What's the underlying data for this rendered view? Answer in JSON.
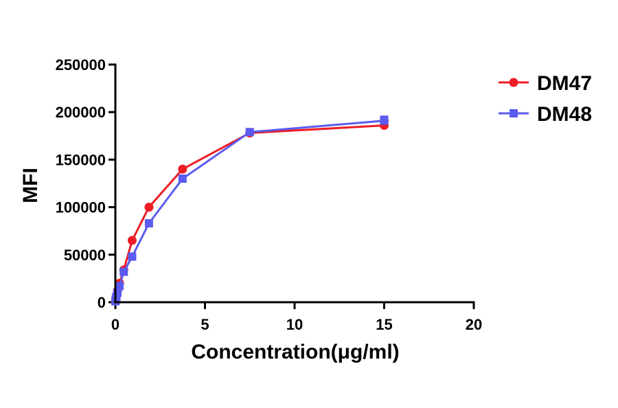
{
  "chart_data": {
    "type": "line",
    "xlabel": "Concentration(μg/ml)",
    "ylabel": "MFI",
    "xlim": [
      0,
      20
    ],
    "ylim": [
      0,
      250000
    ],
    "x_ticks": [
      0,
      5,
      10,
      15,
      20
    ],
    "x_tick_labels": [
      "0",
      "5",
      "10",
      "15",
      "20"
    ],
    "y_ticks": [
      0,
      50000,
      100000,
      150000,
      200000,
      250000
    ],
    "y_tick_labels": [
      "0",
      "50000",
      "100000",
      "150000",
      "200000",
      "250000"
    ],
    "grid": false,
    "legend_position": "top-right",
    "series": [
      {
        "name": "DM47",
        "color": "#ee1c24",
        "marker": "circle",
        "points": [
          {
            "x": 0.0073,
            "y": 1500
          },
          {
            "x": 0.0146,
            "y": 2500
          },
          {
            "x": 0.029,
            "y": 4000
          },
          {
            "x": 0.059,
            "y": 7000
          },
          {
            "x": 0.117,
            "y": 12000
          },
          {
            "x": 0.234,
            "y": 20000
          },
          {
            "x": 0.469,
            "y": 34000
          },
          {
            "x": 0.9375,
            "y": 65000
          },
          {
            "x": 1.875,
            "y": 100000
          },
          {
            "x": 3.75,
            "y": 140000
          },
          {
            "x": 7.5,
            "y": 178000
          },
          {
            "x": 15,
            "y": 186000
          },
          {
            "x": 15,
            "y": 191000
          }
        ]
      },
      {
        "name": "DM48",
        "color": "#5b5bef",
        "marker": "square",
        "points": [
          {
            "x": 0.0073,
            "y": 1000
          },
          {
            "x": 0.0146,
            "y": 2000
          },
          {
            "x": 0.029,
            "y": 3500
          },
          {
            "x": 0.059,
            "y": 6000
          },
          {
            "x": 0.117,
            "y": 10000
          },
          {
            "x": 0.234,
            "y": 17000
          },
          {
            "x": 0.469,
            "y": 32000
          },
          {
            "x": 0.9375,
            "y": 48000
          },
          {
            "x": 1.875,
            "y": 83000
          },
          {
            "x": 3.75,
            "y": 130000
          },
          {
            "x": 7.5,
            "y": 179000
          },
          {
            "x": 15,
            "y": 191000
          },
          {
            "x": 15,
            "y": 192000
          }
        ]
      }
    ]
  }
}
